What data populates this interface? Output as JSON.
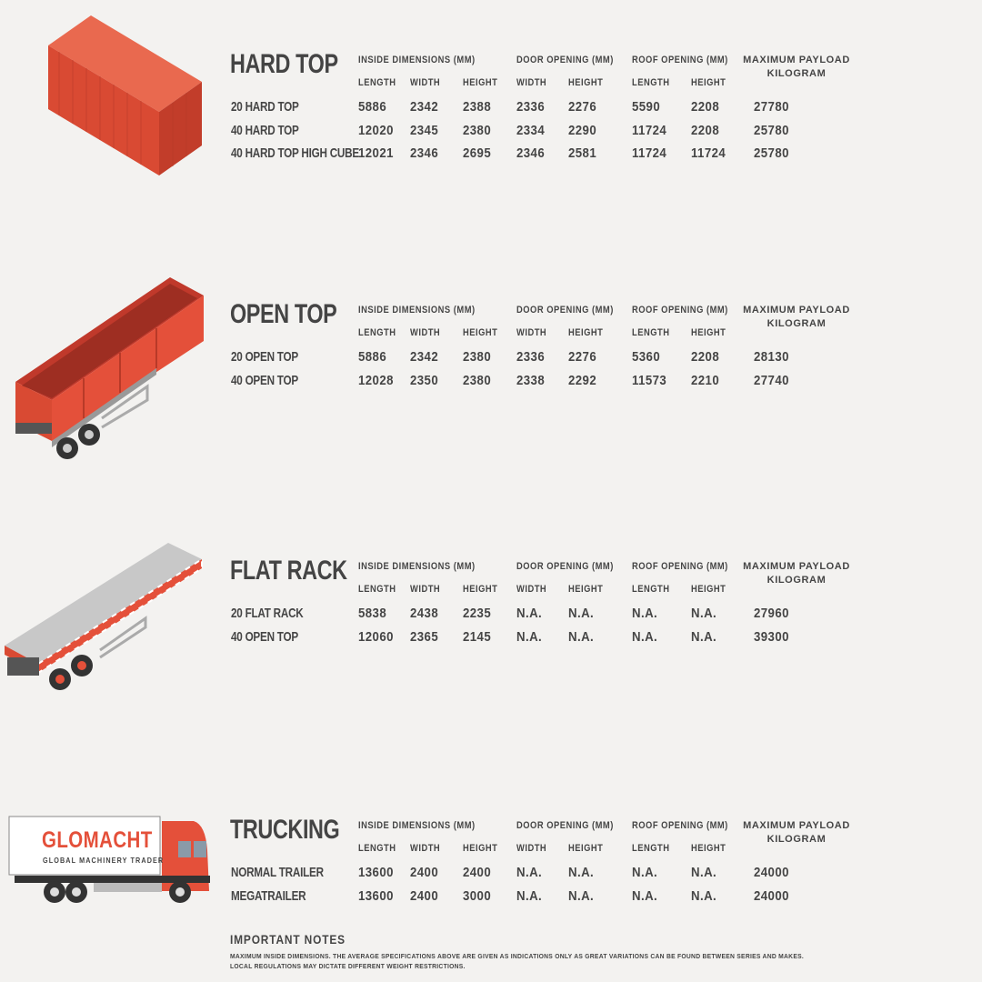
{
  "headers": {
    "inside": "INSIDE DIMENSIONS (MM)",
    "door": "DOOR OPENING (MM)",
    "roof": "ROOF OPENING (MM)",
    "payload": [
      "MAXIMUM PAYLOAD",
      "KILOGRAM"
    ],
    "sub": [
      "LENGTH",
      "WIDTH",
      "HEIGHT",
      "WIDTH",
      "HEIGHT",
      "LENGTH",
      "HEIGHT"
    ]
  },
  "sections": [
    {
      "title": "HARD TOP",
      "rows": [
        {
          "name": "20 HARD TOP",
          "values": [
            "5886",
            "2342",
            "2388",
            "2336",
            "2276",
            "5590",
            "2208",
            "27780"
          ]
        },
        {
          "name": "40 HARD TOP",
          "values": [
            "12020",
            "2345",
            "2380",
            "2334",
            "2290",
            "11724",
            "2208",
            "25780"
          ]
        },
        {
          "name": "40 HARD TOP HIGH CUBE",
          "values": [
            "12021",
            "2346",
            "2695",
            "2346",
            "2581",
            "11724",
            "11724",
            "25780"
          ]
        }
      ]
    },
    {
      "title": "OPEN TOP",
      "rows": [
        {
          "name": "20 OPEN TOP",
          "values": [
            "5886",
            "2342",
            "2380",
            "2336",
            "2276",
            "5360",
            "2208",
            "28130"
          ]
        },
        {
          "name": "40 OPEN TOP",
          "values": [
            "12028",
            "2350",
            "2380",
            "2338",
            "2292",
            "11573",
            "2210",
            "27740"
          ]
        }
      ]
    },
    {
      "title": "FLAT RACK",
      "rows": [
        {
          "name": "20 FLAT RACK",
          "values": [
            "5838",
            "2438",
            "2235",
            "N.A.",
            "N.A.",
            "N.A.",
            "N.A.",
            "27960"
          ]
        },
        {
          "name": "40 OPEN TOP",
          "values": [
            "12060",
            "2365",
            "2145",
            "N.A.",
            "N.A.",
            "N.A.",
            "N.A.",
            "39300"
          ]
        }
      ]
    },
    {
      "title": "TRUCKING",
      "rows": [
        {
          "name": "NORMAL TRAILER",
          "values": [
            "13600",
            "2400",
            "2400",
            "N.A.",
            "N.A.",
            "N.A.",
            "N.A.",
            "24000"
          ]
        },
        {
          "name": "MEGATRAILER",
          "values": [
            "13600",
            "2400",
            "3000",
            "N.A.",
            "N.A.",
            "N.A.",
            "N.A.",
            "24000"
          ]
        }
      ]
    }
  ],
  "logo": {
    "brand": "GLOMACHT",
    "tagline": "GLOBAL MACHINERY TRADER"
  },
  "notes": {
    "title": "IMPORTANT NOTES",
    "lines": [
      "MAXIMUM INSIDE DIMENSIONS. THE AVERAGE SPECIFICATIONS ABOVE ARE GIVEN AS INDICATIONS ONLY AS GREAT VARIATIONS CAN BE FOUND BETWEEN SERIES AND MAKES.",
      "LOCAL REGULATIONS MAY DICTATE DIFFERENT WEIGHT RESTRICTIONS."
    ]
  },
  "colors": {
    "accent": "#e4503a",
    "text": "#454545",
    "background": "#f3f2f0"
  }
}
